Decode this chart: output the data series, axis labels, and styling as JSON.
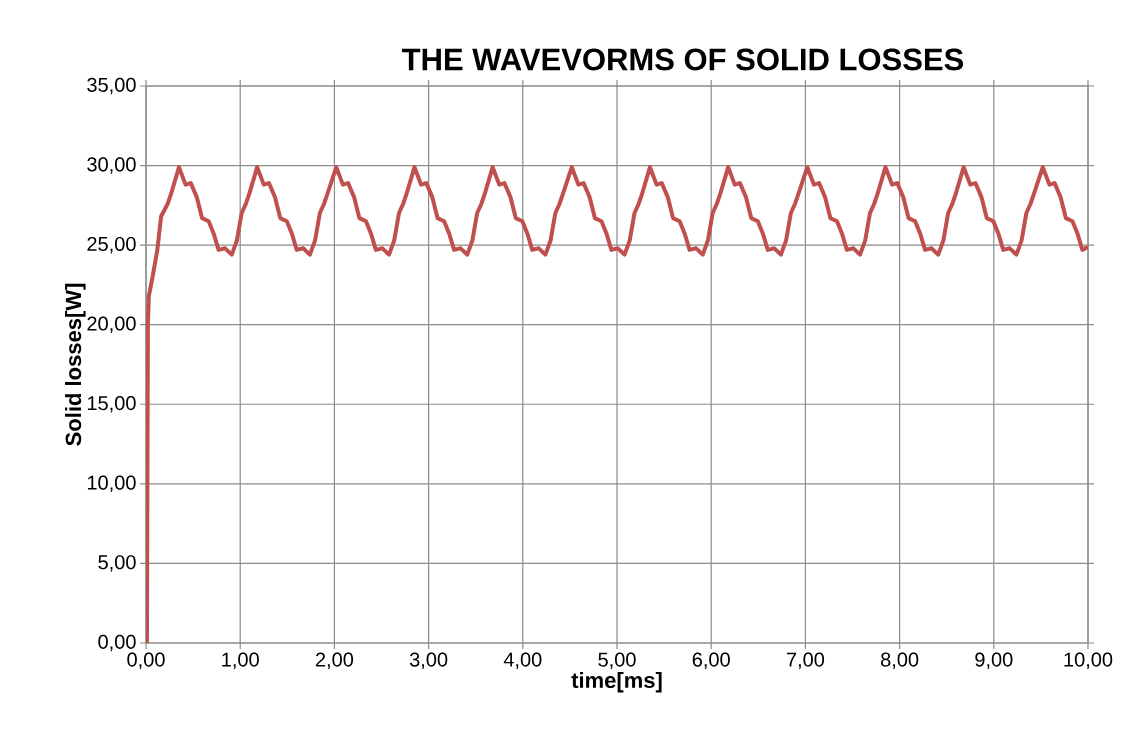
{
  "chart_data": {
    "type": "line",
    "title": "THE WAVEVORMS OF SOLID LOSSES",
    "xlabel": "time[ms]",
    "ylabel": "Solid losses[W]",
    "series": [
      {
        "color": "#c0504d",
        "x": [
          0.01,
          0.015,
          0.02,
          0.03,
          0.07,
          0.12,
          0.16,
          0.23,
          0.265,
          0.35,
          0.42,
          0.475,
          0.54,
          0.595,
          0.665,
          0.72,
          0.77,
          0.84,
          0.91,
          0.965,
          1.015,
          1.06,
          1.095,
          1.18,
          1.25,
          1.305,
          1.37,
          1.425,
          1.495,
          1.55,
          1.6,
          1.67,
          1.74,
          1.795,
          1.845,
          1.89,
          1.925,
          2.02,
          2.09,
          2.145,
          2.21,
          2.265,
          2.335,
          2.39,
          2.44,
          2.51,
          2.58,
          2.635,
          2.685,
          2.73,
          2.765,
          2.85,
          2.92,
          2.975,
          3.04,
          3.095,
          3.165,
          3.22,
          3.27,
          3.34,
          3.41,
          3.465,
          3.515,
          3.56,
          3.595,
          3.68,
          3.75,
          3.805,
          3.87,
          3.925,
          3.995,
          4.05,
          4.1,
          4.17,
          4.24,
          4.295,
          4.345,
          4.39,
          4.425,
          4.52,
          4.59,
          4.645,
          4.71,
          4.765,
          4.835,
          4.89,
          4.94,
          5.01,
          5.08,
          5.135,
          5.185,
          5.23,
          5.265,
          5.35,
          5.42,
          5.475,
          5.54,
          5.595,
          5.665,
          5.72,
          5.77,
          5.84,
          5.91,
          5.965,
          6.015,
          6.06,
          6.095,
          6.18,
          6.25,
          6.305,
          6.37,
          6.425,
          6.495,
          6.55,
          6.6,
          6.67,
          6.74,
          6.795,
          6.845,
          6.89,
          6.925,
          7.02,
          7.09,
          7.145,
          7.21,
          7.265,
          7.335,
          7.39,
          7.44,
          7.51,
          7.58,
          7.635,
          7.685,
          7.73,
          7.765,
          7.85,
          7.92,
          7.975,
          8.04,
          8.095,
          8.165,
          8.22,
          8.27,
          8.34,
          8.41,
          8.465,
          8.515,
          8.56,
          8.595,
          8.68,
          8.75,
          8.805,
          8.87,
          8.925,
          8.995,
          9.05,
          9.1,
          9.17,
          9.24,
          9.295,
          9.345,
          9.39,
          9.425,
          9.52,
          9.59,
          9.645,
          9.71,
          9.765,
          9.835,
          9.89,
          9.94,
          10.0
        ],
        "values": [
          0,
          10,
          20,
          21.8,
          23,
          24.7,
          26.8,
          27.6,
          28.2,
          29.9,
          28.8,
          28.9,
          28.0,
          26.7,
          26.5,
          25.7,
          24.7,
          24.8,
          24.4,
          25.3,
          27.0,
          27.6,
          28.2,
          29.9,
          28.8,
          28.9,
          28.0,
          26.7,
          26.5,
          25.7,
          24.7,
          24.8,
          24.4,
          25.3,
          27.0,
          27.6,
          28.2,
          29.9,
          28.8,
          28.9,
          28.0,
          26.7,
          26.5,
          25.7,
          24.7,
          24.8,
          24.4,
          25.3,
          27.0,
          27.6,
          28.2,
          29.9,
          28.8,
          28.9,
          28.0,
          26.7,
          26.5,
          25.7,
          24.7,
          24.8,
          24.4,
          25.3,
          27.0,
          27.6,
          28.2,
          29.9,
          28.8,
          28.9,
          28.0,
          26.7,
          26.5,
          25.7,
          24.7,
          24.8,
          24.4,
          25.3,
          27.0,
          27.6,
          28.2,
          29.9,
          28.8,
          28.9,
          28.0,
          26.7,
          26.5,
          25.7,
          24.7,
          24.8,
          24.4,
          25.3,
          27.0,
          27.6,
          28.2,
          29.9,
          28.8,
          28.9,
          28.0,
          26.7,
          26.5,
          25.7,
          24.7,
          24.8,
          24.4,
          25.3,
          27.0,
          27.6,
          28.2,
          29.9,
          28.8,
          28.9,
          28.0,
          26.7,
          26.5,
          25.7,
          24.7,
          24.8,
          24.4,
          25.3,
          27.0,
          27.6,
          28.2,
          29.9,
          28.8,
          28.9,
          28.0,
          26.7,
          26.5,
          25.7,
          24.7,
          24.8,
          24.4,
          25.3,
          27.0,
          27.6,
          28.2,
          29.9,
          28.8,
          28.9,
          28.0,
          26.7,
          26.5,
          25.7,
          24.7,
          24.8,
          24.4,
          25.3,
          27.0,
          27.6,
          28.2,
          29.9,
          28.8,
          28.9,
          28.0,
          26.7,
          26.5,
          25.7,
          24.7,
          24.8,
          24.4,
          25.3,
          27.0,
          27.6,
          28.2,
          29.9,
          28.8,
          28.9,
          28.0,
          26.7,
          26.5,
          25.7,
          24.7,
          24.9
        ]
      }
    ],
    "xlim": [
      0,
      10
    ],
    "ylim": [
      0,
      35
    ],
    "xticks": [
      {
        "value": 0,
        "label": "0,00"
      },
      {
        "value": 1,
        "label": "1,00"
      },
      {
        "value": 2,
        "label": "2,00"
      },
      {
        "value": 3,
        "label": "3,00"
      },
      {
        "value": 4,
        "label": "4,00"
      },
      {
        "value": 5,
        "label": "5,00"
      },
      {
        "value": 6,
        "label": "6,00"
      },
      {
        "value": 7,
        "label": "7,00"
      },
      {
        "value": 8,
        "label": "8,00"
      },
      {
        "value": 9,
        "label": "9,00"
      },
      {
        "value": 10,
        "label": "10,00"
      }
    ],
    "yticks": [
      {
        "value": 0,
        "label": "0,00"
      },
      {
        "value": 5,
        "label": "5,00"
      },
      {
        "value": 10,
        "label": "10,00"
      },
      {
        "value": 15,
        "label": "15,00"
      },
      {
        "value": 20,
        "label": "20,00"
      },
      {
        "value": 25,
        "label": "25,00"
      },
      {
        "value": 30,
        "label": "30,00"
      },
      {
        "value": 35,
        "label": "35,00"
      }
    ],
    "grid": true,
    "legend": false,
    "marker": "none",
    "line_style": "solid"
  }
}
